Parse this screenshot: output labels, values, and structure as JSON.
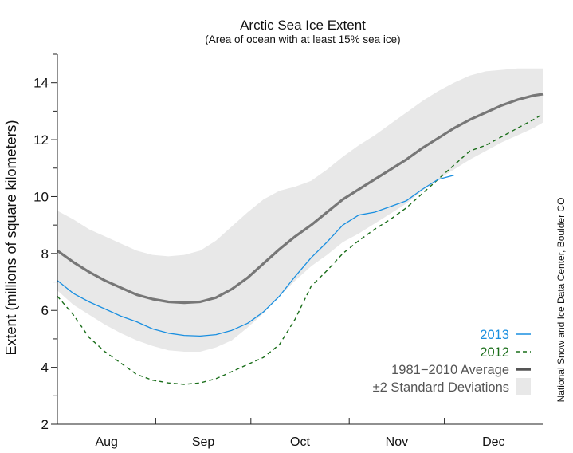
{
  "chart_data": {
    "type": "line",
    "title": "Arctic Sea Ice Extent",
    "subtitle": "(Area of ocean with at least 15% sea ice)",
    "ylabel": "Extent (millions of square kilometers)",
    "xlabel": "",
    "credit": "National Snow and Ice Data Center, Boulder CO",
    "ylim": [
      2,
      15
    ],
    "yticks": [
      2,
      4,
      6,
      8,
      10,
      12,
      14
    ],
    "xlim": [
      0,
      153
    ],
    "months": [
      {
        "label": "Aug",
        "center": 15.5
      },
      {
        "label": "Sep",
        "center": 46
      },
      {
        "label": "Oct",
        "center": 76.5
      },
      {
        "label": "Nov",
        "center": 107
      },
      {
        "label": "Dec",
        "center": 137.5
      }
    ],
    "month_boundaries": [
      31,
      61,
      92,
      122
    ],
    "grid": false,
    "legend_position": "bottom-right",
    "series": [
      {
        "name": "2013",
        "color": "#1a8fe0",
        "style": "solid",
        "x": [
          0,
          5,
          10,
          15,
          20,
          25,
          30,
          35,
          40,
          45,
          50,
          55,
          60,
          65,
          70,
          75,
          80,
          85,
          90,
          95,
          100,
          105,
          110,
          115,
          120,
          125
        ],
        "y": [
          7.05,
          6.6,
          6.3,
          6.05,
          5.8,
          5.6,
          5.35,
          5.2,
          5.12,
          5.1,
          5.15,
          5.3,
          5.55,
          5.95,
          6.5,
          7.2,
          7.85,
          8.4,
          9.0,
          9.35,
          9.45,
          9.65,
          9.85,
          10.25,
          10.6,
          10.75
        ]
      },
      {
        "name": "2012",
        "color": "#1a6e1a",
        "style": "dashed",
        "x": [
          0,
          5,
          10,
          15,
          20,
          25,
          30,
          35,
          40,
          45,
          50,
          55,
          60,
          65,
          70,
          75,
          80,
          85,
          90,
          95,
          100,
          105,
          110,
          115,
          120,
          125,
          130,
          135,
          140,
          145,
          150,
          153
        ],
        "y": [
          6.5,
          5.85,
          5.05,
          4.55,
          4.15,
          3.75,
          3.55,
          3.45,
          3.4,
          3.45,
          3.6,
          3.85,
          4.1,
          4.35,
          4.8,
          5.7,
          6.85,
          7.4,
          8.0,
          8.45,
          8.85,
          9.2,
          9.6,
          10.1,
          10.6,
          11.1,
          11.6,
          11.8,
          12.1,
          12.4,
          12.7,
          12.9
        ]
      },
      {
        "name": "1981−2010 Average",
        "color": "#777777",
        "style": "solid",
        "x": [
          0,
          5,
          10,
          15,
          20,
          25,
          30,
          35,
          40,
          45,
          50,
          55,
          60,
          65,
          70,
          75,
          80,
          85,
          90,
          95,
          100,
          105,
          110,
          115,
          120,
          125,
          130,
          135,
          140,
          145,
          150,
          153
        ],
        "y": [
          8.1,
          7.7,
          7.35,
          7.05,
          6.8,
          6.55,
          6.4,
          6.3,
          6.27,
          6.3,
          6.45,
          6.75,
          7.15,
          7.65,
          8.15,
          8.6,
          9.0,
          9.45,
          9.9,
          10.25,
          10.6,
          10.95,
          11.3,
          11.7,
          12.05,
          12.4,
          12.7,
          12.95,
          13.2,
          13.4,
          13.55,
          13.6
        ]
      }
    ],
    "band": {
      "name": "±2 Standard Deviations",
      "color": "#e8e8e8",
      "x": [
        0,
        5,
        10,
        15,
        20,
        25,
        30,
        35,
        40,
        45,
        50,
        55,
        60,
        65,
        70,
        75,
        80,
        85,
        90,
        95,
        100,
        105,
        110,
        115,
        120,
        125,
        130,
        135,
        140,
        145,
        150,
        153
      ],
      "upper": [
        9.5,
        9.2,
        8.85,
        8.6,
        8.35,
        8.1,
        7.95,
        7.9,
        7.95,
        8.1,
        8.45,
        8.95,
        9.45,
        9.9,
        10.2,
        10.35,
        10.55,
        10.95,
        11.4,
        11.8,
        12.15,
        12.55,
        12.95,
        13.35,
        13.7,
        14.0,
        14.25,
        14.4,
        14.45,
        14.5,
        14.5,
        14.5
      ],
      "lower": [
        6.7,
        6.2,
        5.85,
        5.5,
        5.2,
        4.95,
        4.75,
        4.6,
        4.55,
        4.55,
        4.7,
        4.95,
        5.4,
        5.9,
        6.5,
        7.05,
        7.55,
        7.95,
        8.4,
        8.7,
        9.05,
        9.4,
        9.75,
        10.2,
        10.6,
        10.95,
        11.3,
        11.6,
        11.9,
        12.15,
        12.4,
        12.6
      ]
    },
    "legend": [
      {
        "label": "2013",
        "color": "#1a8fe0",
        "kind": "solid"
      },
      {
        "label": "2012",
        "color": "#1a6e1a",
        "kind": "dashed"
      },
      {
        "label": "1981−2010 Average",
        "color": "#555555",
        "kind": "thick"
      },
      {
        "label": "±2 Standard Deviations",
        "color": "#555555",
        "kind": "band"
      }
    ]
  }
}
